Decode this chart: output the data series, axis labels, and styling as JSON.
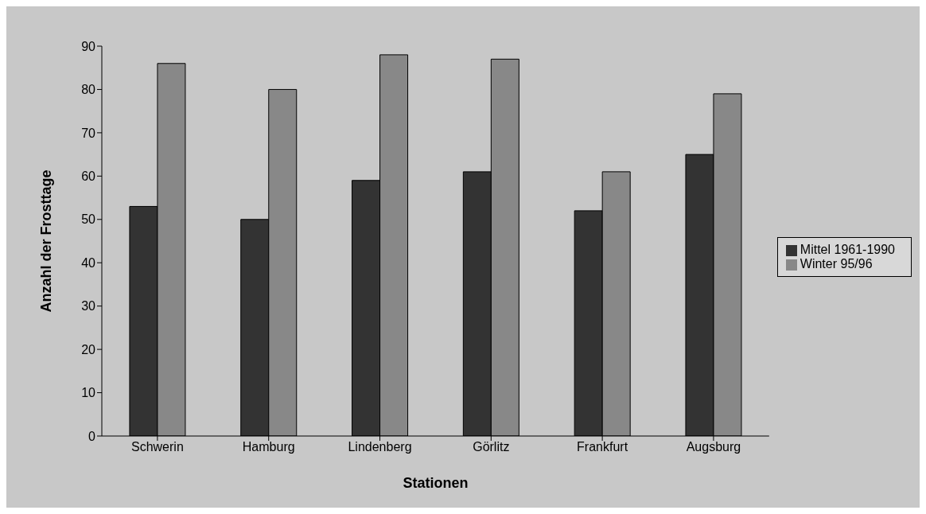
{
  "chart_data": {
    "type": "bar",
    "xlabel": "Stationen",
    "ylabel": "Anzahl der Frosttage",
    "categories": [
      "Schwerin",
      "Hamburg",
      "Lindenberg",
      "Görlitz",
      "Frankfurt",
      "Augsburg"
    ],
    "series": [
      {
        "name": "Mittel 1961-1990",
        "color": "#333333",
        "values": [
          53,
          50,
          59,
          61,
          52,
          65
        ]
      },
      {
        "name": "Winter 95/96",
        "color": "#888888",
        "values": [
          86,
          80,
          88,
          87,
          61,
          79
        ]
      }
    ],
    "ylim": [
      0,
      90
    ],
    "yticks": [
      0,
      10,
      20,
      30,
      40,
      50,
      60,
      70,
      80,
      90
    ],
    "legend": "right"
  }
}
